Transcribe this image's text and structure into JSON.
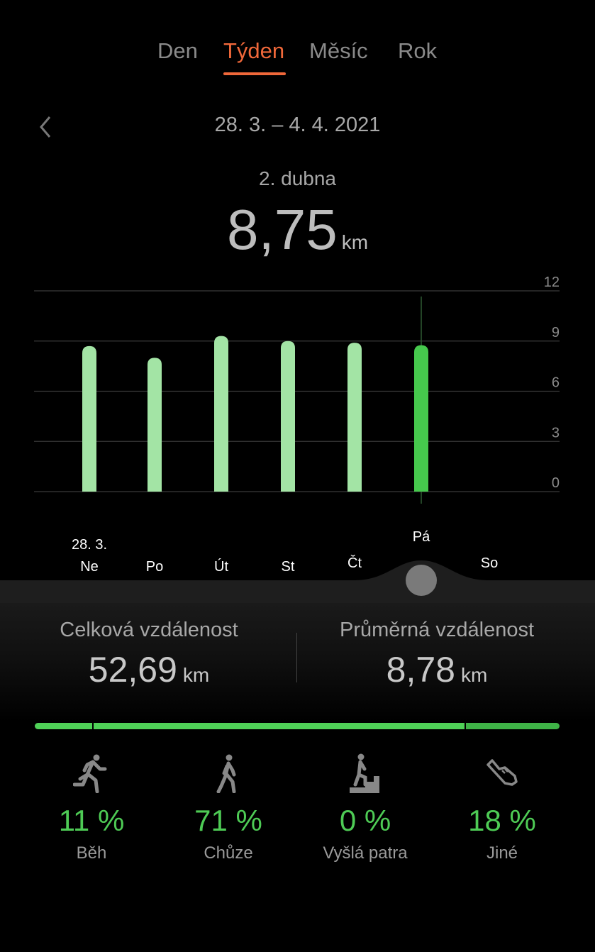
{
  "tabs": [
    {
      "label": "Den",
      "active": false
    },
    {
      "label": "Týden",
      "active": true
    },
    {
      "label": "Měsíc",
      "active": false
    },
    {
      "label": "Rok",
      "active": false
    }
  ],
  "accent": "#f0683a",
  "date_range": "28. 3. – 4. 4. 2021",
  "selected": {
    "date": "2. dubna",
    "value": "8,75",
    "unit": "km"
  },
  "chart_data": {
    "type": "bar",
    "categories": [
      "Ne",
      "Po",
      "Út",
      "St",
      "Čt",
      "Pá",
      "So"
    ],
    "first_date_label": "28. 3.",
    "values": [
      8.7,
      8.0,
      9.3,
      9.0,
      8.9,
      8.75,
      null
    ],
    "selected_index": 5,
    "yticks": [
      0,
      3,
      6,
      9,
      12
    ],
    "ylim": [
      0,
      12
    ],
    "axis_side": "right",
    "grid": true,
    "colors": {
      "bar": "#a3e4a5",
      "selected": "#46c94d"
    }
  },
  "stats": {
    "total": {
      "label": "Celková vzdálenost",
      "value": "52,69",
      "unit": "km"
    },
    "average": {
      "label": "Průměrná vzdálenost",
      "value": "8,78",
      "unit": "km"
    }
  },
  "breakdown_colors": [
    "#4fd157",
    "#4fd157",
    "#4fd157",
    "#3fb347"
  ],
  "activities": [
    {
      "icon": "running-icon",
      "percent": 11,
      "pct_text": "11 %",
      "label": "Běh"
    },
    {
      "icon": "walking-icon",
      "percent": 71,
      "pct_text": "71 %",
      "label": "Chůze"
    },
    {
      "icon": "stairs-icon",
      "percent": 0,
      "pct_text": "0 %",
      "label": "Vyšlá patra"
    },
    {
      "icon": "shoe-icon",
      "percent": 18,
      "pct_text": "18 %",
      "label": "Jiné"
    }
  ]
}
